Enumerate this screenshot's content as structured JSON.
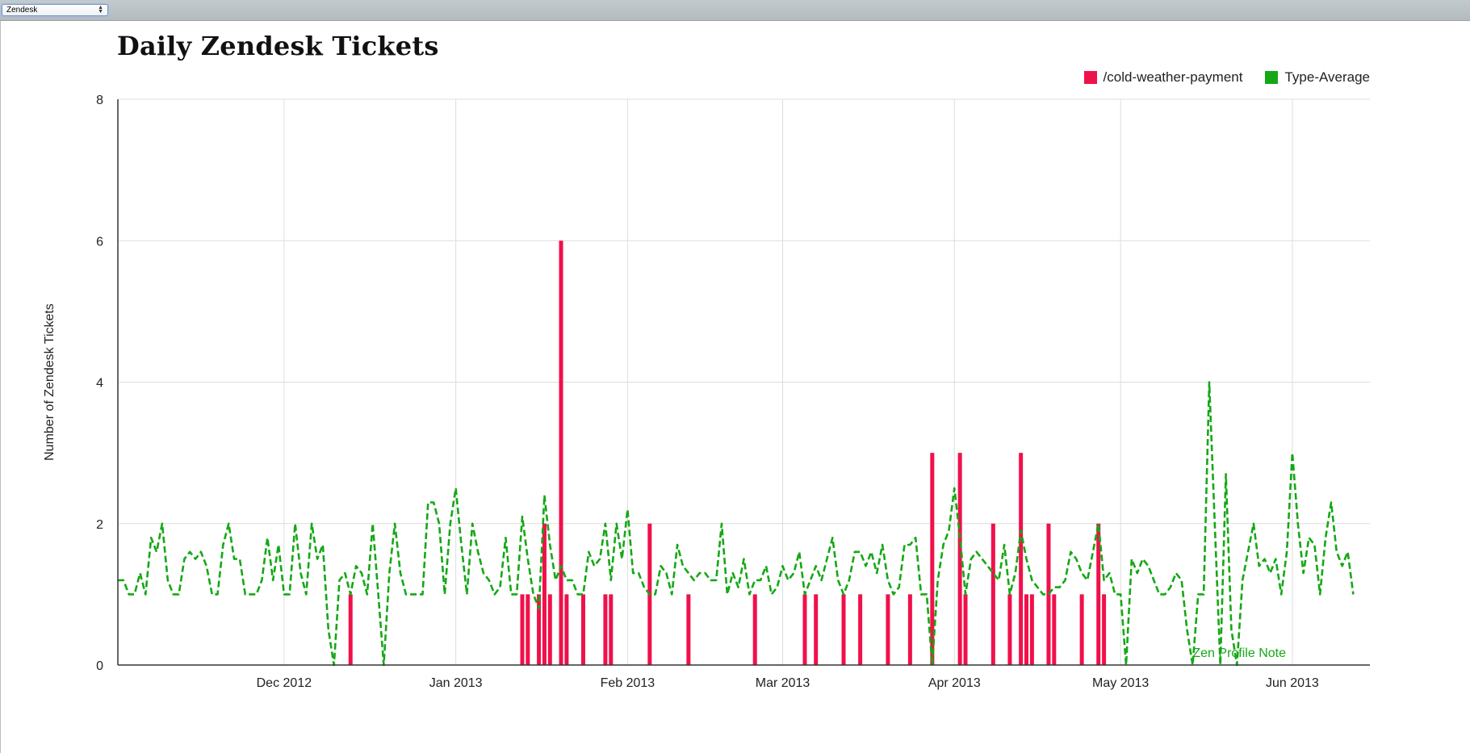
{
  "toolbar": {
    "select_value": "Zendesk"
  },
  "colors": {
    "series1": "#f0104a",
    "series2": "#14a814",
    "grid": "#dddddd",
    "axis": "#333333",
    "text": "#222222"
  },
  "chart_data": {
    "type": "bar",
    "title": "Daily Zendesk Tickets",
    "xlabel": "",
    "ylabel": "Number of Zendesk Tickets",
    "ylim": [
      0,
      8
    ],
    "yticks": [
      0,
      2,
      4,
      6,
      8
    ],
    "xlim": [
      "2012-11-01",
      "2013-06-15"
    ],
    "xticks": [
      {
        "date": "2012-12-01",
        "label": "Dec 2012"
      },
      {
        "date": "2013-01-01",
        "label": "Jan 2013"
      },
      {
        "date": "2013-02-01",
        "label": "Feb 2013"
      },
      {
        "date": "2013-03-01",
        "label": "Mar 2013"
      },
      {
        "date": "2013-04-01",
        "label": "Apr 2013"
      },
      {
        "date": "2013-05-01",
        "label": "May 2013"
      },
      {
        "date": "2013-06-01",
        "label": "Jun 2013"
      }
    ],
    "grid": true,
    "legend_position": "top-right",
    "annotation": {
      "text": "Zen Profile Note",
      "date": "2013-05-14",
      "value": 0.1
    },
    "series": [
      {
        "name": "/cold-weather-payment",
        "type": "bar",
        "color": "#f0104a",
        "points": [
          {
            "date": "2012-12-13",
            "value": 1
          },
          {
            "date": "2013-01-13",
            "value": 1
          },
          {
            "date": "2013-01-14",
            "value": 1
          },
          {
            "date": "2013-01-16",
            "value": 1
          },
          {
            "date": "2013-01-17",
            "value": 2
          },
          {
            "date": "2013-01-18",
            "value": 1
          },
          {
            "date": "2013-01-20",
            "value": 6
          },
          {
            "date": "2013-01-21",
            "value": 1
          },
          {
            "date": "2013-01-24",
            "value": 1
          },
          {
            "date": "2013-01-28",
            "value": 1
          },
          {
            "date": "2013-01-29",
            "value": 1
          },
          {
            "date": "2013-02-05",
            "value": 2
          },
          {
            "date": "2013-02-12",
            "value": 1
          },
          {
            "date": "2013-02-24",
            "value": 1
          },
          {
            "date": "2013-03-05",
            "value": 1
          },
          {
            "date": "2013-03-07",
            "value": 1
          },
          {
            "date": "2013-03-12",
            "value": 1
          },
          {
            "date": "2013-03-15",
            "value": 1
          },
          {
            "date": "2013-03-20",
            "value": 1
          },
          {
            "date": "2013-03-24",
            "value": 1
          },
          {
            "date": "2013-03-28",
            "value": 3
          },
          {
            "date": "2013-04-02",
            "value": 3
          },
          {
            "date": "2013-04-03",
            "value": 1
          },
          {
            "date": "2013-04-08",
            "value": 2
          },
          {
            "date": "2013-04-11",
            "value": 1
          },
          {
            "date": "2013-04-13",
            "value": 3
          },
          {
            "date": "2013-04-14",
            "value": 1
          },
          {
            "date": "2013-04-15",
            "value": 1
          },
          {
            "date": "2013-04-18",
            "value": 2
          },
          {
            "date": "2013-04-19",
            "value": 1
          },
          {
            "date": "2013-04-24",
            "value": 1
          },
          {
            "date": "2013-04-27",
            "value": 2
          },
          {
            "date": "2013-04-28",
            "value": 1
          }
        ]
      },
      {
        "name": "Type-Average",
        "type": "line",
        "style": "dashed",
        "color": "#14a814",
        "start_date": "2012-11-01",
        "values": [
          1.2,
          1.2,
          1.0,
          1.0,
          1.3,
          1.0,
          1.8,
          1.6,
          2.0,
          1.2,
          1.0,
          1.0,
          1.5,
          1.6,
          1.5,
          1.6,
          1.4,
          1.0,
          1.0,
          1.7,
          2.0,
          1.5,
          1.5,
          1.0,
          1.0,
          1.0,
          1.2,
          1.8,
          1.2,
          1.7,
          1.0,
          1.0,
          2.0,
          1.3,
          1.0,
          2.0,
          1.5,
          1.7,
          0.5,
          0.0,
          1.2,
          1.3,
          1.0,
          1.4,
          1.3,
          1.0,
          2.0,
          1.0,
          0.0,
          1.3,
          2.0,
          1.3,
          1.0,
          1.0,
          1.0,
          1.0,
          2.3,
          2.3,
          2.0,
          1.0,
          2.0,
          2.5,
          1.7,
          1.0,
          2.0,
          1.6,
          1.3,
          1.2,
          1.0,
          1.1,
          1.8,
          1.0,
          1.0,
          2.1,
          1.5,
          1.0,
          0.8,
          2.4,
          1.7,
          1.2,
          1.4,
          1.2,
          1.2,
          1.0,
          1.0,
          1.6,
          1.4,
          1.5,
          2.0,
          1.2,
          2.0,
          1.5,
          2.2,
          1.3,
          1.3,
          1.1,
          1.0,
          1.0,
          1.4,
          1.3,
          1.0,
          1.7,
          1.4,
          1.3,
          1.2,
          1.3,
          1.3,
          1.2,
          1.2,
          2.0,
          1.0,
          1.3,
          1.1,
          1.5,
          1.0,
          1.2,
          1.2,
          1.4,
          1.0,
          1.1,
          1.4,
          1.2,
          1.3,
          1.6,
          1.0,
          1.2,
          1.4,
          1.2,
          1.5,
          1.8,
          1.2,
          1.0,
          1.2,
          1.6,
          1.6,
          1.4,
          1.6,
          1.3,
          1.7,
          1.2,
          1.0,
          1.1,
          1.7,
          1.7,
          1.8,
          1.0,
          1.0,
          0.0,
          1.2,
          1.7,
          1.9,
          2.5,
          1.8,
          1.0,
          1.5,
          1.6,
          1.5,
          1.4,
          1.3,
          1.2,
          1.7,
          1.0,
          1.3,
          1.9,
          1.5,
          1.2,
          1.1,
          1.0,
          1.0,
          1.1,
          1.1,
          1.2,
          1.6,
          1.5,
          1.3,
          1.2,
          1.6,
          2.0,
          1.2,
          1.3,
          1.0,
          1.0,
          0.0,
          1.5,
          1.3,
          1.5,
          1.4,
          1.2,
          1.0,
          1.0,
          1.1,
          1.3,
          1.2,
          0.5,
          0.0,
          1.0,
          1.0,
          4.0,
          2.0,
          0.0,
          2.7,
          0.5,
          0.0,
          1.2,
          1.6,
          2.0,
          1.4,
          1.5,
          1.3,
          1.5,
          1.0,
          1.6,
          3.0,
          2.0,
          1.3,
          1.8,
          1.7,
          1.0,
          1.8,
          2.3,
          1.6,
          1.4,
          1.6,
          1.0
        ]
      }
    ]
  }
}
